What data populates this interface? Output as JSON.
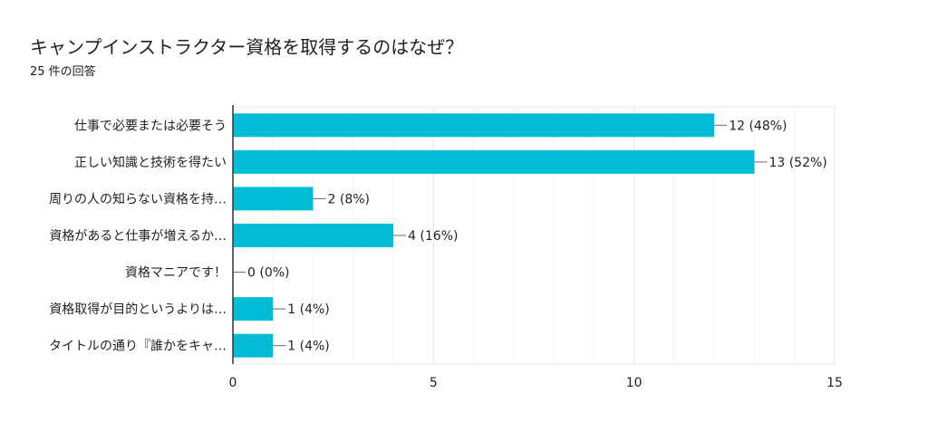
{
  "chart_data": {
    "type": "bar",
    "orientation": "horizontal",
    "title": "キャンプインストラクター資格を取得するのはなぜ？",
    "subtitle": "25 件の回答",
    "categories": [
      "仕事で必要または必要そう",
      "正しい知識と技術を得たい",
      "周りの人の知らない資格を持…",
      "資格があると仕事が増えるか…",
      "資格マニアです！",
      "資格取得が目的というよりは…",
      "タイトルの通り『誰かをキャ…"
    ],
    "values": [
      12,
      13,
      2,
      4,
      0,
      1,
      1
    ],
    "data_labels": [
      "12 (48%)",
      "13 (52%)",
      "2 (8%)",
      "4 (16%)",
      "0 (0%)",
      "1 (4%)",
      "1 (4%)"
    ],
    "xlim": [
      0,
      15
    ],
    "xticks": [
      0,
      5,
      10,
      15
    ],
    "xtick_labels": [
      "0",
      "5",
      "10",
      "15"
    ],
    "grid": true,
    "bar_color": "#00bcd4"
  }
}
